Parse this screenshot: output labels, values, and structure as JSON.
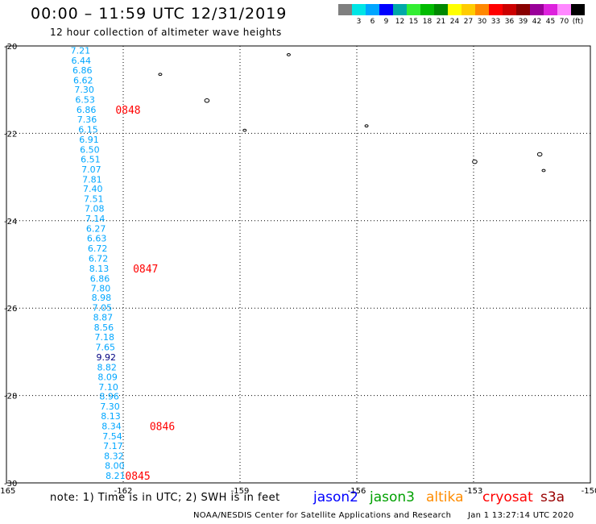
{
  "header": {
    "title": "00:00 – 11:59 UTC 12/31/2019",
    "subtitle": "12 hour collection of altimeter wave heights"
  },
  "legend": {
    "items": [
      {
        "label": "",
        "color": "#7f7f7f"
      },
      {
        "label": "3",
        "color": "#00e5e5"
      },
      {
        "label": "6",
        "color": "#00a6ff"
      },
      {
        "label": "9",
        "color": "#0000ff"
      },
      {
        "label": "12",
        "color": "#00a8a8"
      },
      {
        "label": "15",
        "color": "#33ee33"
      },
      {
        "label": "18",
        "color": "#00bb00"
      },
      {
        "label": "21",
        "color": "#008800"
      },
      {
        "label": "24",
        "color": "#ffff00"
      },
      {
        "label": "27",
        "color": "#ffcc00"
      },
      {
        "label": "30",
        "color": "#ff8800"
      },
      {
        "label": "33",
        "color": "#ff0000"
      },
      {
        "label": "36",
        "color": "#cc0000"
      },
      {
        "label": "39",
        "color": "#880000"
      },
      {
        "label": "42",
        "color": "#990099"
      },
      {
        "label": "45",
        "color": "#dd22dd"
      },
      {
        "label": "70",
        "color": "#ff88ff"
      },
      {
        "label": "(ft)",
        "color": "#000000"
      }
    ]
  },
  "map": {
    "lon_range": [
      -165,
      -150
    ],
    "lat_range": [
      -30,
      -20
    ],
    "x_ticks": [
      "-165",
      "-162",
      "-159",
      "-156",
      "-153",
      "-150"
    ],
    "y_ticks": [
      "-20",
      "-22",
      "-24",
      "-26",
      "-28",
      "-30"
    ],
    "track_color": "#00a6ff",
    "highlight_color": "#000080",
    "time_color": "#ff0000",
    "wave_heights": [
      {
        "lon": -163.1,
        "lat": -20.1,
        "value": "7.21"
      },
      {
        "lon": -163.08,
        "lat": -20.33,
        "value": "6.44"
      },
      {
        "lon": -163.05,
        "lat": -20.55,
        "value": "6.86"
      },
      {
        "lon": -163.03,
        "lat": -20.78,
        "value": "6.62"
      },
      {
        "lon": -163.0,
        "lat": -21.0,
        "value": "7.30"
      },
      {
        "lon": -162.98,
        "lat": -21.23,
        "value": "6.53"
      },
      {
        "lon": -162.95,
        "lat": -21.46,
        "value": "6.86"
      },
      {
        "lon": -162.93,
        "lat": -21.68,
        "value": "7.36"
      },
      {
        "lon": -162.9,
        "lat": -21.91,
        "value": "6.15"
      },
      {
        "lon": -162.88,
        "lat": -22.14,
        "value": "6.91"
      },
      {
        "lon": -162.86,
        "lat": -22.37,
        "value": "6.50"
      },
      {
        "lon": -162.84,
        "lat": -22.59,
        "value": "6.51"
      },
      {
        "lon": -162.82,
        "lat": -22.82,
        "value": "7.07"
      },
      {
        "lon": -162.8,
        "lat": -23.05,
        "value": "7.81"
      },
      {
        "lon": -162.78,
        "lat": -23.27,
        "value": "7.40"
      },
      {
        "lon": -162.76,
        "lat": -23.5,
        "value": "7.51"
      },
      {
        "lon": -162.74,
        "lat": -23.72,
        "value": "7.08"
      },
      {
        "lon": -162.72,
        "lat": -23.95,
        "value": "7.14"
      },
      {
        "lon": -162.7,
        "lat": -24.18,
        "value": "6.27"
      },
      {
        "lon": -162.68,
        "lat": -24.4,
        "value": "6.63"
      },
      {
        "lon": -162.66,
        "lat": -24.63,
        "value": "6.72"
      },
      {
        "lon": -162.64,
        "lat": -24.86,
        "value": "6.72"
      },
      {
        "lon": -162.62,
        "lat": -25.09,
        "value": "8.13"
      },
      {
        "lon": -162.6,
        "lat": -25.32,
        "value": "6.86"
      },
      {
        "lon": -162.58,
        "lat": -25.54,
        "value": "7.80"
      },
      {
        "lon": -162.56,
        "lat": -25.76,
        "value": "8.98"
      },
      {
        "lon": -162.54,
        "lat": -25.99,
        "value": "7.05"
      },
      {
        "lon": -162.52,
        "lat": -26.21,
        "value": "8.87"
      },
      {
        "lon": -162.5,
        "lat": -26.44,
        "value": "8.56"
      },
      {
        "lon": -162.48,
        "lat": -26.66,
        "value": "7.18"
      },
      {
        "lon": -162.46,
        "lat": -26.89,
        "value": "7.65"
      },
      {
        "lon": -162.44,
        "lat": -27.12,
        "value": "9.92",
        "highlight": true
      },
      {
        "lon": -162.42,
        "lat": -27.35,
        "value": "8.82"
      },
      {
        "lon": -162.4,
        "lat": -27.57,
        "value": "8.09"
      },
      {
        "lon": -162.38,
        "lat": -27.8,
        "value": "7.10"
      },
      {
        "lon": -162.36,
        "lat": -28.02,
        "value": "8.96"
      },
      {
        "lon": -162.34,
        "lat": -28.25,
        "value": "7.30"
      },
      {
        "lon": -162.32,
        "lat": -28.47,
        "value": "8.13"
      },
      {
        "lon": -162.3,
        "lat": -28.7,
        "value": "8.34"
      },
      {
        "lon": -162.28,
        "lat": -28.93,
        "value": "7.54"
      },
      {
        "lon": -162.26,
        "lat": -29.15,
        "value": "7.17"
      },
      {
        "lon": -162.24,
        "lat": -29.38,
        "value": "8.32"
      },
      {
        "lon": -162.22,
        "lat": -29.6,
        "value": "8.00"
      },
      {
        "lon": -162.2,
        "lat": -29.83,
        "value": "8.21"
      }
    ],
    "times": [
      {
        "lon": -162.2,
        "lat": -21.46,
        "label": "0848"
      },
      {
        "lon": -161.75,
        "lat": -25.09,
        "label": "0847"
      },
      {
        "lon": -161.32,
        "lat": -28.7,
        "label": "0846"
      },
      {
        "lon": -161.95,
        "lat": -29.83,
        "label": "0845"
      }
    ],
    "islands": [
      {
        "lon": -161.05,
        "lat": -20.65,
        "size": "small"
      },
      {
        "lon": -159.85,
        "lat": -21.25,
        "size": "medium"
      },
      {
        "lon": -158.88,
        "lat": -21.93,
        "size": "small"
      },
      {
        "lon": -157.75,
        "lat": -20.2,
        "size": "small"
      },
      {
        "lon": -155.75,
        "lat": -21.83,
        "size": "small"
      },
      {
        "lon": -152.97,
        "lat": -22.65,
        "size": "medium"
      },
      {
        "lon": -151.3,
        "lat": -22.48,
        "size": "medium"
      },
      {
        "lon": -151.2,
        "lat": -22.85,
        "size": "small"
      }
    ]
  },
  "footer": {
    "note": "note:  1) Time is in UTC;  2) SWH is in feet",
    "satellites": [
      {
        "name": "jason2",
        "color": "#0000ff"
      },
      {
        "name": "jason3",
        "color": "#00a000"
      },
      {
        "name": "altika",
        "color": "#ff8c00"
      },
      {
        "name": "cryosat",
        "color": "#ff0000"
      },
      {
        "name": "s3a",
        "color": "#990000"
      }
    ],
    "credit": "NOAA/NESDIS Center for Satellite Applications and Research",
    "timestamp": "Jan  1 13:27:14 UTC 2020"
  }
}
